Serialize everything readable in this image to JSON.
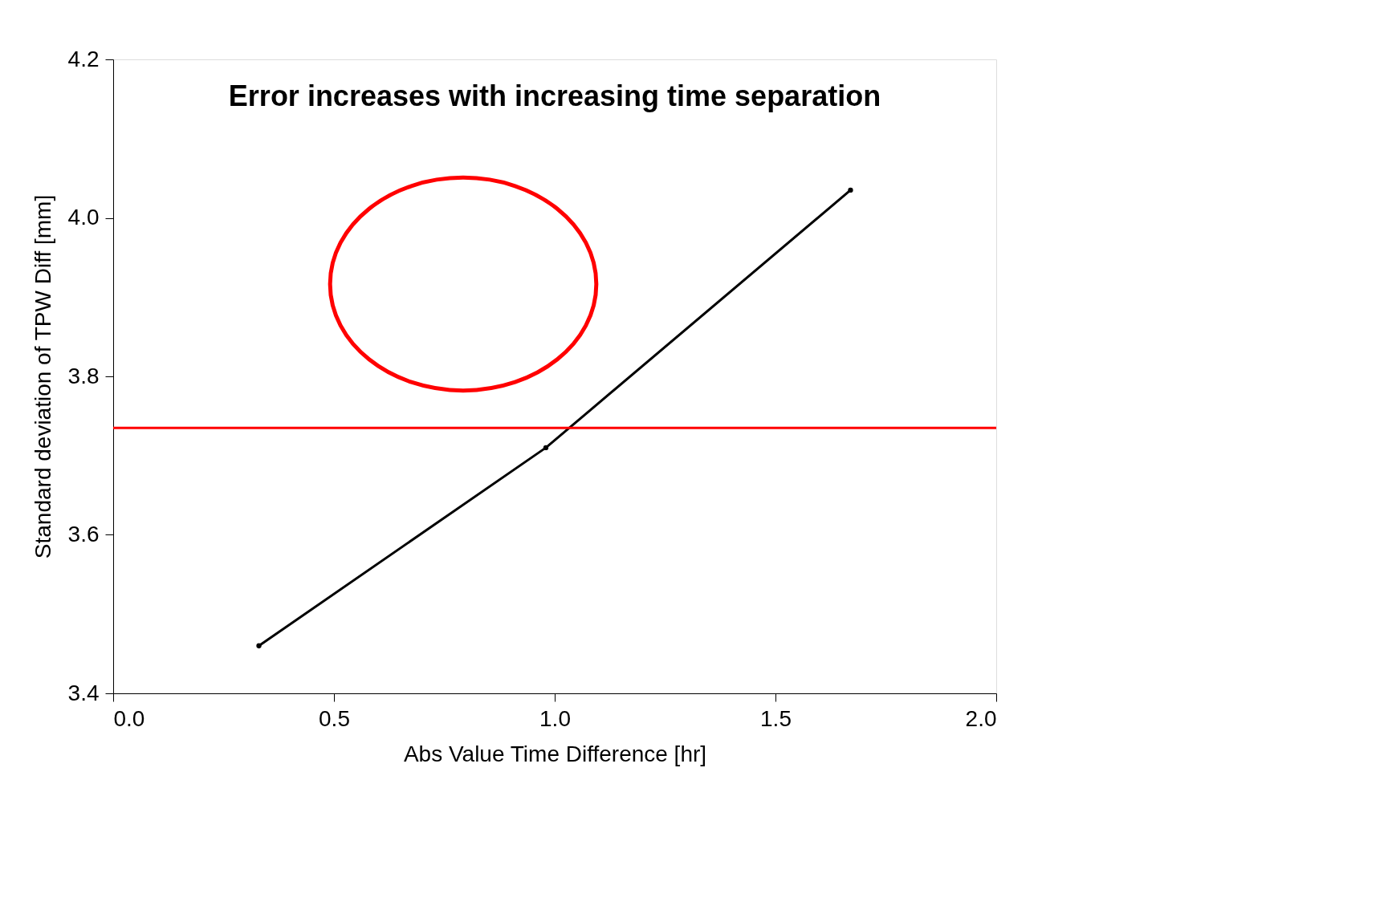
{
  "chart_data": {
    "type": "line",
    "title": "Error increases with increasing time separation",
    "xlabel": "Abs Value Time Difference [hr]",
    "ylabel": "Standard deviation of TPW Diff [mm]",
    "x": [
      0.33,
      0.98,
      1.67
    ],
    "series": [
      {
        "color": "#000000",
        "values": [
          3.46,
          3.71,
          4.035
        ]
      }
    ],
    "xlim": [
      0,
      2
    ],
    "xticks": [
      {
        "value": 0,
        "label": "0.0"
      },
      {
        "value": 0.5,
        "label": "0.5"
      },
      {
        "value": 1,
        "label": "1.0"
      },
      {
        "value": 1.5,
        "label": "1.5"
      },
      {
        "value": 2,
        "label": "2.0"
      }
    ],
    "ylim": [
      3.4,
      4.2
    ],
    "yticks": [
      {
        "value": 3.4,
        "label": "3.4"
      },
      {
        "value": 3.6,
        "label": "3.6"
      },
      {
        "value": 3.8,
        "label": "3.8"
      },
      {
        "value": 4.0,
        "label": "4.0"
      },
      {
        "value": 4.2,
        "label": "4.2"
      }
    ],
    "ref_lines": [
      {
        "axis": "y",
        "value": 3.735,
        "color": "#ff0000"
      }
    ],
    "grid": false,
    "marker": "circle",
    "line_style": "solid"
  }
}
